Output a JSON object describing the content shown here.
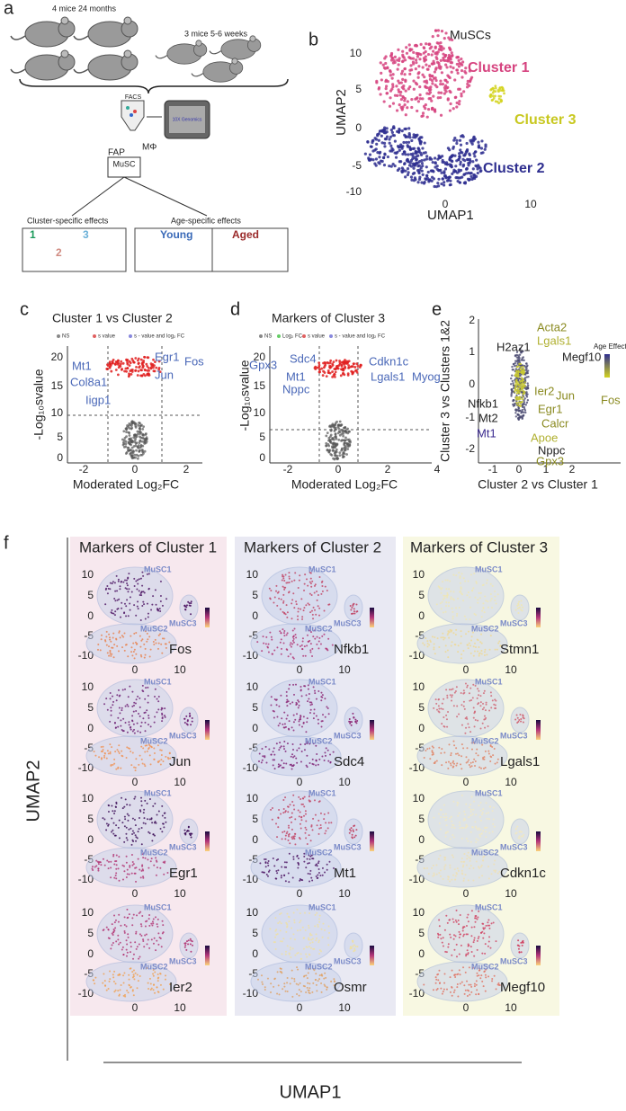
{
  "a": {
    "label": "a",
    "group_old": "4 mice 24 months",
    "group_young": "3 mice 5-6 weeks",
    "facs": "FACS",
    "genomics": "10X Genomics",
    "fap": "FAP",
    "macrophage": "MΦ",
    "musc": "MuSC",
    "cluster_effects": "Cluster-specific effects",
    "age_effects": "Age-specific effects",
    "cluster_ids": [
      "1",
      "3",
      "2"
    ],
    "young": "Young",
    "aged": "Aged"
  },
  "b": {
    "label": "b",
    "title": "MuSCs",
    "yticks": [
      "10",
      "5",
      "0",
      "-5",
      "-10"
    ],
    "xticks": [
      "0",
      "10"
    ],
    "xlabel": "UMAP1",
    "ylabel": "UMAP2",
    "clusters": [
      "Cluster 1",
      "Cluster 3",
      "Cluster 2"
    ]
  },
  "c": {
    "label": "c",
    "title": "Cluster 1 vs Cluster 2",
    "legend": [
      "NS",
      "s value",
      "s - value and log₂ FC"
    ],
    "yticks": [
      "20",
      "15",
      "10",
      "5",
      "0"
    ],
    "xticks": [
      "-2",
      "0",
      "2"
    ],
    "xlabel": "Moderated Log₂FC",
    "ylabel": "-Log₁₀svalue",
    "genes": [
      "Egr1",
      "Fos",
      "Jun",
      "Mt1",
      "Col8a1",
      "Iigp1"
    ]
  },
  "d": {
    "label": "d",
    "title": "Markers of Cluster 3",
    "legend": [
      "NS",
      "Log₂ FC",
      "s value",
      "s - value and log₂ FC"
    ],
    "yticks": [
      "20",
      "15",
      "10",
      "5",
      "0"
    ],
    "xticks": [
      "-2",
      "0",
      "2",
      "4"
    ],
    "xlabel": "Moderated Log₂FC",
    "ylabel": "-Log₁₀svalue",
    "genes": [
      "Gpx3",
      "Sdc4",
      "Mt1",
      "Nppc",
      "Cdkn1c",
      "Lgals1",
      "Myog"
    ]
  },
  "e": {
    "label": "e",
    "ylabel": "Cluster 3 vs Clusters 1&2",
    "xlabel": "Cluster 2 vs Cluster 1",
    "yticks": [
      "2",
      "1",
      "0",
      "-1",
      "-2"
    ],
    "xticks": [
      "-1",
      "0",
      "1",
      "2"
    ],
    "legend_title": "Age Effect",
    "genes": [
      "Acta2",
      "Lgals1",
      "H2az1",
      "Megf10",
      "Nfkb1",
      "Ier2",
      "Jun",
      "Fos",
      "Egr1",
      "Mt2",
      "Calcr",
      "Mt1",
      "Apoe",
      "Nppc",
      "Gpx3"
    ]
  },
  "f": {
    "label": "f",
    "ylabel": "UMAP2",
    "xlabel": "UMAP1",
    "yticks": [
      "10",
      "5",
      "0",
      "-5",
      "-10"
    ],
    "xticks": [
      "0",
      "10"
    ],
    "clusters": [
      "MuSC1",
      "MuSC3",
      "MuSC2"
    ],
    "columns": [
      {
        "header": "Markers of Cluster 1",
        "genes": [
          "Fos",
          "Jun",
          "Egr1",
          "Ier2"
        ]
      },
      {
        "header": "Markers of Cluster 2",
        "genes": [
          "Nfkb1",
          "Sdc4",
          "Mt1",
          "Osmr"
        ]
      },
      {
        "header": "Markers of Cluster 3",
        "genes": [
          "Stmn1",
          "Lgals1",
          "Cdkn1c",
          "Megf10"
        ]
      }
    ]
  }
}
